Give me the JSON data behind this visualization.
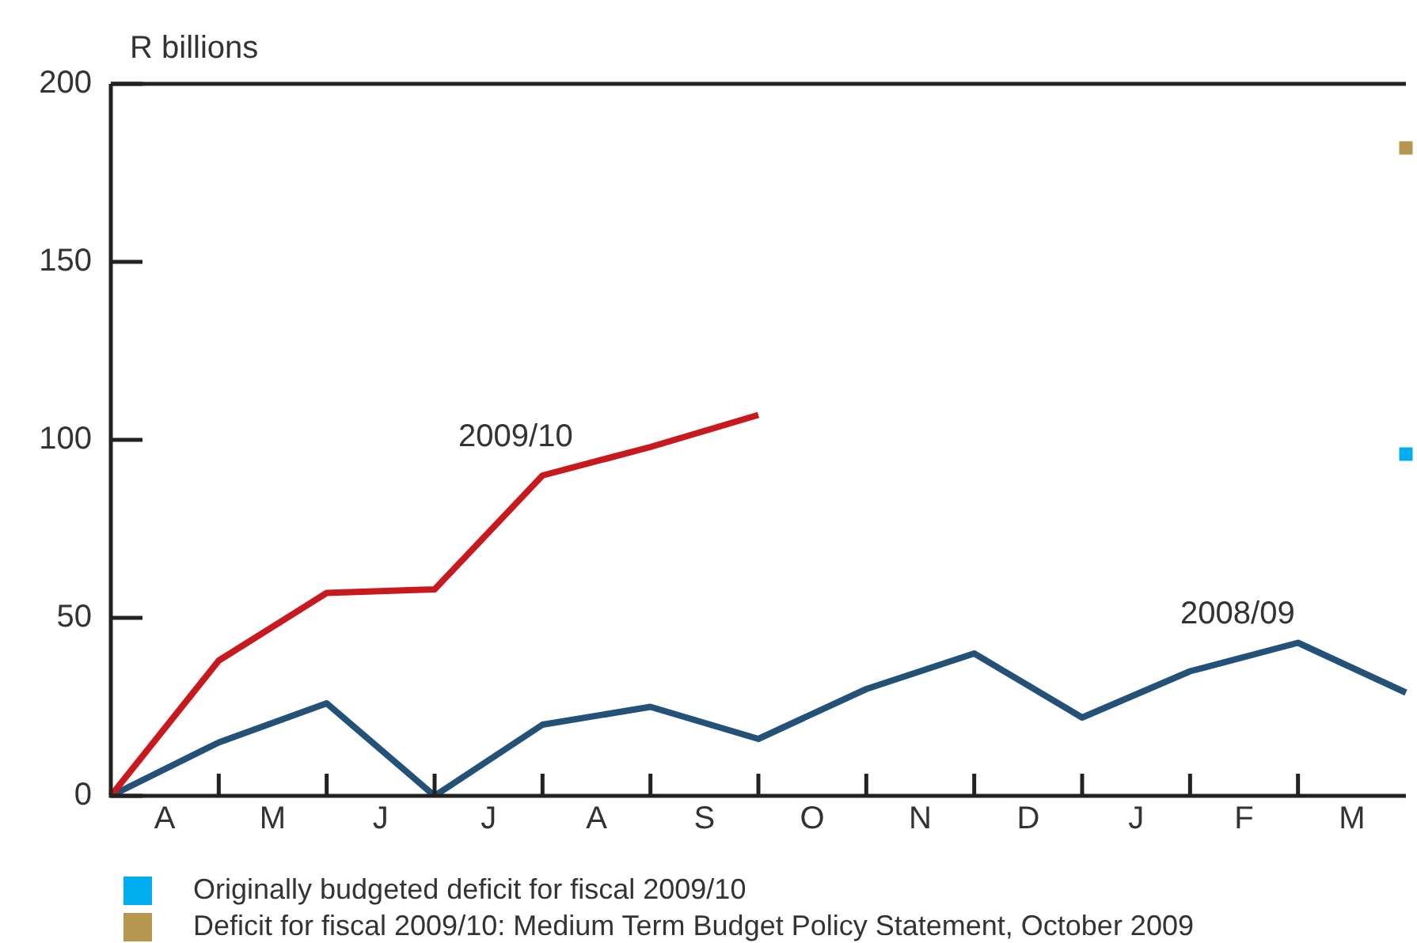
{
  "chart_data": {
    "type": "line",
    "ylabel": "R billions",
    "categories": [
      null,
      "A",
      null,
      "M",
      null,
      "J",
      null,
      "J",
      null,
      "A",
      null,
      "S",
      null,
      "O",
      null,
      "N",
      null,
      "D",
      null,
      "J",
      null,
      "F",
      null,
      "M",
      null
    ],
    "series": [
      {
        "name": "2009/10",
        "color": "#c8191f",
        "values": [
          0,
          null,
          38,
          null,
          57,
          null,
          58,
          null,
          90,
          null,
          98,
          null,
          107,
          null,
          null,
          null,
          null,
          null,
          null,
          null,
          null,
          null,
          null,
          null,
          null
        ]
      },
      {
        "name": "2008/09",
        "color": "#245178",
        "values": [
          0,
          null,
          15,
          null,
          26,
          null,
          0,
          null,
          20,
          null,
          25,
          null,
          16,
          null,
          30,
          null,
          40,
          null,
          22,
          null,
          35,
          null,
          43,
          null,
          29
        ]
      },
      {
        "type": "scatter",
        "marker": "square",
        "name": "Originally budgeted deficit for fiscal 2009/10",
        "color": "#00aeef",
        "values": [
          null,
          null,
          null,
          null,
          null,
          null,
          null,
          null,
          null,
          null,
          null,
          null,
          null,
          null,
          null,
          null,
          null,
          null,
          null,
          null,
          null,
          null,
          null,
          null,
          96
        ]
      },
      {
        "type": "scatter",
        "marker": "square",
        "name": "Deficit for fiscal 2009/10: Medium Term Budget Policy Statement, October 2009",
        "color": "#b5974f",
        "values": [
          null,
          null,
          null,
          null,
          null,
          null,
          null,
          null,
          null,
          null,
          null,
          null,
          null,
          null,
          null,
          null,
          null,
          null,
          null,
          null,
          null,
          null,
          null,
          null,
          182
        ]
      }
    ],
    "ylim": [
      0,
      200
    ],
    "yticks": [
      0,
      50,
      100,
      150,
      200
    ],
    "grid": false,
    "legend": "bottom",
    "marker": "none",
    "line_style": "solid"
  }
}
